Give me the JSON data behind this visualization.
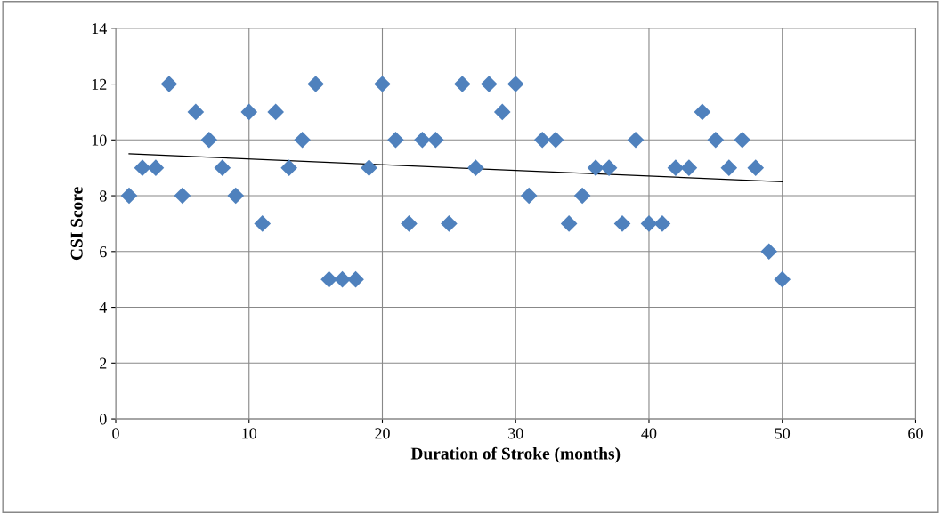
{
  "chart_data": {
    "type": "scatter",
    "xlabel": "Duration of Stroke (months)",
    "ylabel": "CSI Score",
    "xlim": [
      0,
      60
    ],
    "xticks": [
      0,
      10,
      20,
      30,
      40,
      50,
      60
    ],
    "ylim": [
      0,
      14
    ],
    "yticks": [
      0,
      2,
      4,
      6,
      8,
      10,
      12,
      14
    ],
    "grid": true,
    "series": [
      {
        "marker": "diamond",
        "color": "#4f81bd",
        "x": [
          1,
          2,
          3,
          4,
          5,
          6,
          7,
          8,
          9,
          10,
          11,
          12,
          13,
          14,
          15,
          16,
          17,
          18,
          19,
          20,
          21,
          22,
          23,
          24,
          25,
          26,
          27,
          28,
          29,
          30,
          31,
          32,
          33,
          34,
          35,
          36,
          37,
          38,
          39,
          40,
          41,
          42,
          43,
          44,
          45,
          46,
          47,
          48,
          49,
          50
        ],
        "values": [
          8,
          9,
          9,
          12,
          8,
          11,
          10,
          9,
          8,
          11,
          7,
          11,
          9,
          10,
          12,
          5,
          5,
          5,
          9,
          12,
          10,
          7,
          10,
          10,
          7,
          12,
          9,
          12,
          11,
          12,
          8,
          10,
          10,
          7,
          8,
          9,
          9,
          7,
          10,
          7,
          7,
          9,
          9,
          11,
          10,
          9,
          10,
          9,
          6,
          5
        ]
      },
      {
        "type": "line",
        "color": "#000000",
        "x": [
          1,
          50
        ],
        "values": [
          9.5,
          8.5
        ]
      }
    ]
  }
}
